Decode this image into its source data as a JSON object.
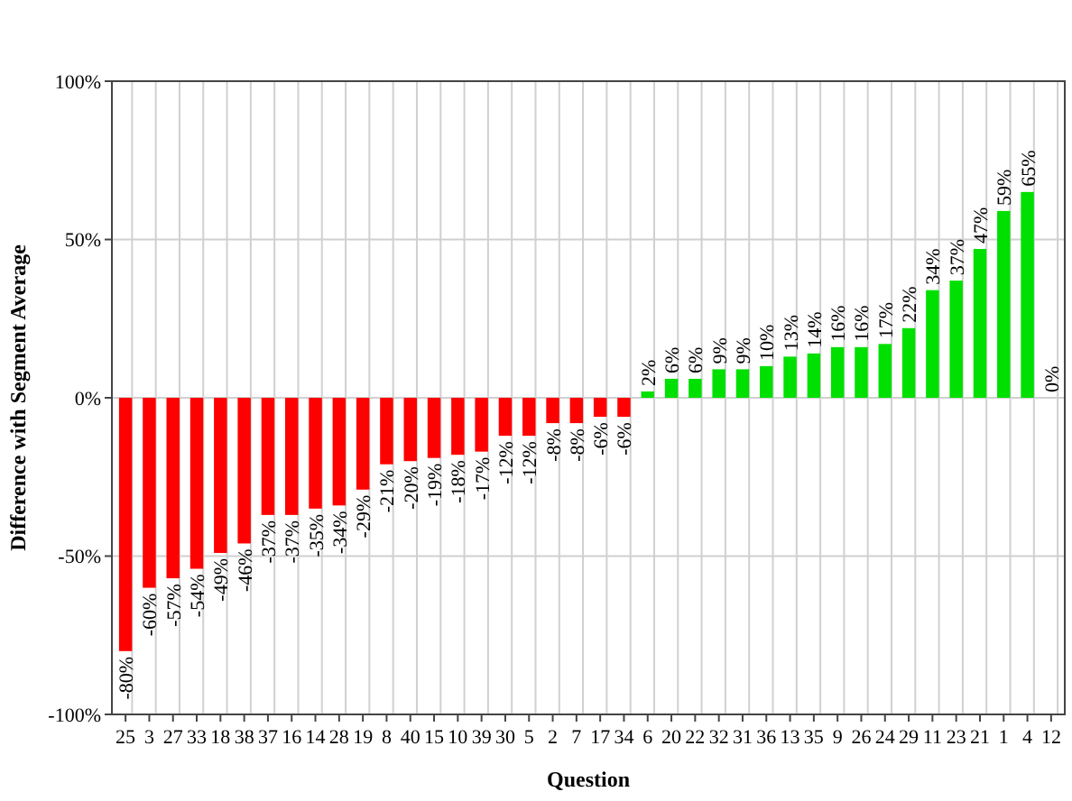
{
  "chart_data": {
    "type": "bar",
    "xlabel": "Question",
    "ylabel": "Difference with Segment Average",
    "categories": [
      "25",
      "3",
      "27",
      "33",
      "18",
      "38",
      "37",
      "16",
      "14",
      "28",
      "19",
      "8",
      "40",
      "15",
      "10",
      "39",
      "30",
      "5",
      "2",
      "7",
      "17",
      "34",
      "6",
      "20",
      "22",
      "32",
      "31",
      "36",
      "13",
      "35",
      "9",
      "26",
      "24",
      "29",
      "11",
      "23",
      "21",
      "1",
      "4",
      "12"
    ],
    "values": [
      -80,
      -60,
      -57,
      -54,
      -49,
      -46,
      -37,
      -37,
      -35,
      -34,
      -29,
      -21,
      -20,
      -19,
      -18,
      -17,
      -12,
      -12,
      -8,
      -8,
      -6,
      -6,
      2,
      6,
      6,
      9,
      9,
      10,
      13,
      14,
      16,
      16,
      17,
      22,
      34,
      37,
      47,
      59,
      65,
      0
    ],
    "value_labels": [
      "-80%",
      "-60%",
      "-57%",
      "-54%",
      "-49%",
      "-46%",
      "-37%",
      "-37%",
      "-35%",
      "-34%",
      "-29%",
      "-21%",
      "-20%",
      "-19%",
      "-18%",
      "-17%",
      "-12%",
      "-12%",
      "-8%",
      "-8%",
      "-6%",
      "-6%",
      "2%",
      "6%",
      "6%",
      "9%",
      "9%",
      "10%",
      "13%",
      "14%",
      "16%",
      "16%",
      "17%",
      "22%",
      "34%",
      "37%",
      "47%",
      "59%",
      "65%",
      "0%"
    ],
    "colors": [
      "#ff0000",
      "#ff0000",
      "#ff0000",
      "#ff0000",
      "#ff0000",
      "#ff0000",
      "#ff0000",
      "#ff0000",
      "#ff0000",
      "#ff0000",
      "#ff0000",
      "#ff0000",
      "#ff0000",
      "#ff0000",
      "#ff0000",
      "#ff0000",
      "#ff0000",
      "#ff0000",
      "#ff0000",
      "#ff0000",
      "#ff0000",
      "#ff0000",
      "#00e000",
      "#00e000",
      "#00e000",
      "#00e000",
      "#00e000",
      "#00e000",
      "#00e000",
      "#00e000",
      "#00e000",
      "#00e000",
      "#00e000",
      "#00e000",
      "#00e000",
      "#00e000",
      "#00e000",
      "#00e000",
      "#00e000",
      "#00e000"
    ],
    "ylim": [
      -100,
      100
    ],
    "yticks": [
      {
        "value": -100,
        "label": "-100%"
      },
      {
        "value": -50,
        "label": "-50%"
      },
      {
        "value": 0,
        "label": "0%"
      },
      {
        "value": 50,
        "label": "50%"
      },
      {
        "value": 100,
        "label": "100%"
      }
    ],
    "grid": true
  }
}
